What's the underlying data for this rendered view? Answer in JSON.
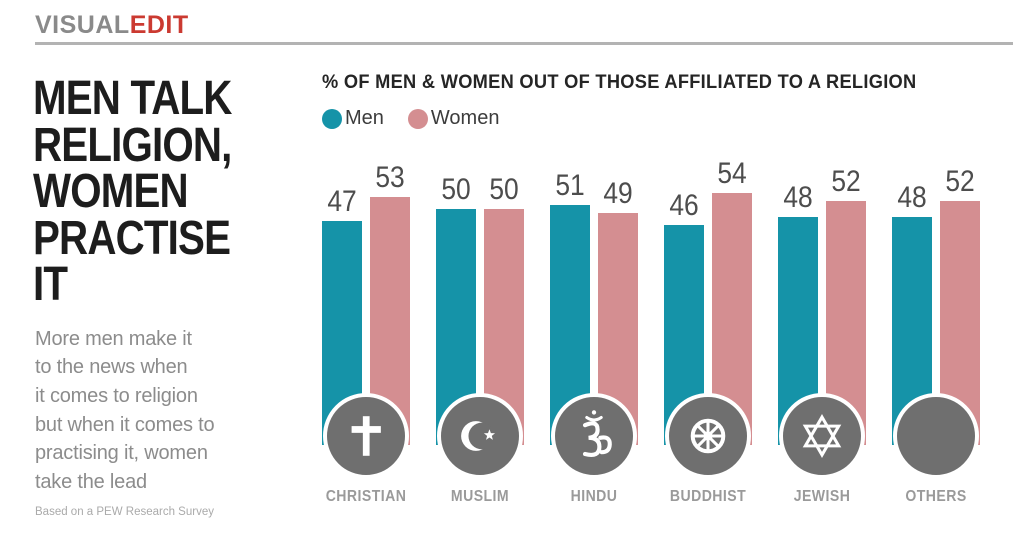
{
  "header": {
    "brand_gray": "VISUAL",
    "brand_red": "EDIT",
    "colors": {
      "gray": "#8a8a8a",
      "red": "#cb3a31",
      "rule": "#b3b3b3"
    }
  },
  "left_panel": {
    "headline": "MEN TALK\nRELIGION,\nWOMEN\nPRACTISE IT",
    "description": "More men make it\nto the news when\nit comes to religion\nbut when it comes to\npractising it, women\ntake the lead",
    "source_note": "Based on a PEW Research Survey"
  },
  "chart_data": {
    "type": "bar",
    "title": "% OF MEN & WOMEN OUT OF THOSE AFFILIATED TO A RELIGION",
    "categories": [
      "CHRISTIAN",
      "MUSLIM",
      "HINDU",
      "BUDDHIST",
      "JEWISH",
      "OTHERS"
    ],
    "series": [
      {
        "name": "Men",
        "color": "#1593a8",
        "values": [
          47,
          50,
          51,
          46,
          48,
          48
        ]
      },
      {
        "name": "Women",
        "color": "#d48e91",
        "values": [
          53,
          50,
          49,
          54,
          52,
          52
        ]
      }
    ],
    "value_labels_shown": true,
    "axes_shown": false,
    "legend_position": "top-left",
    "icons": [
      "cross-icon",
      "crescent-star-icon",
      "om-icon",
      "dharma-wheel-icon",
      "star-of-david-icon",
      "plain-circle-icon"
    ],
    "icon_circle_color": "#6f6f6f",
    "value_label_color": "#4d4d4d",
    "category_label_color": "#9a9a9a"
  }
}
